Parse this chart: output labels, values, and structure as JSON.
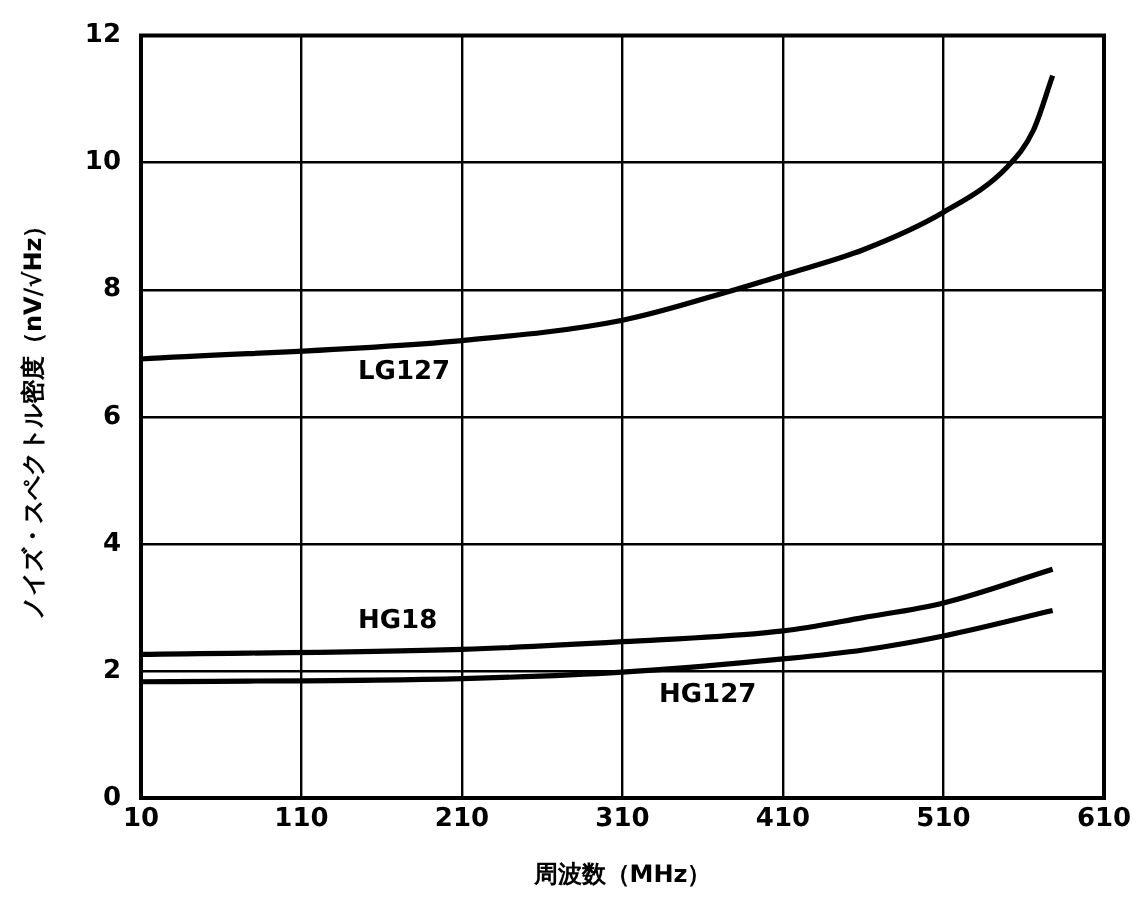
{
  "chart_data": {
    "type": "line",
    "xlabel": "周波数（MHz）",
    "ylabel": "ノイズ・スペクトル密度（nV/√Hz）",
    "xlim": [
      10,
      610
    ],
    "xticks": [
      10,
      110,
      210,
      310,
      410,
      510,
      610
    ],
    "ylim": [
      0,
      12
    ],
    "yticks": [
      0,
      2,
      4,
      6,
      8,
      10,
      12
    ],
    "grid": true,
    "legend": false,
    "series": [
      {
        "name": "LG127",
        "color": "#000000",
        "x": [
          10,
          210,
          310,
          380,
          410,
          460,
          510,
          550,
          566,
          578
        ],
        "values": [
          6.91,
          7.2,
          7.52,
          8.0,
          8.23,
          8.63,
          9.22,
          9.94,
          10.51,
          11.37
        ]
      },
      {
        "name": "HG18",
        "color": "#000000",
        "x": [
          10,
          210,
          310,
          410,
          460,
          510,
          578
        ],
        "values": [
          2.26,
          2.34,
          2.46,
          2.63,
          2.84,
          3.07,
          3.6
        ]
      },
      {
        "name": "HG127",
        "color": "#000000",
        "x": [
          10,
          210,
          310,
          410,
          460,
          510,
          578
        ],
        "values": [
          1.83,
          1.88,
          1.98,
          2.19,
          2.33,
          2.55,
          2.95
        ]
      }
    ]
  }
}
